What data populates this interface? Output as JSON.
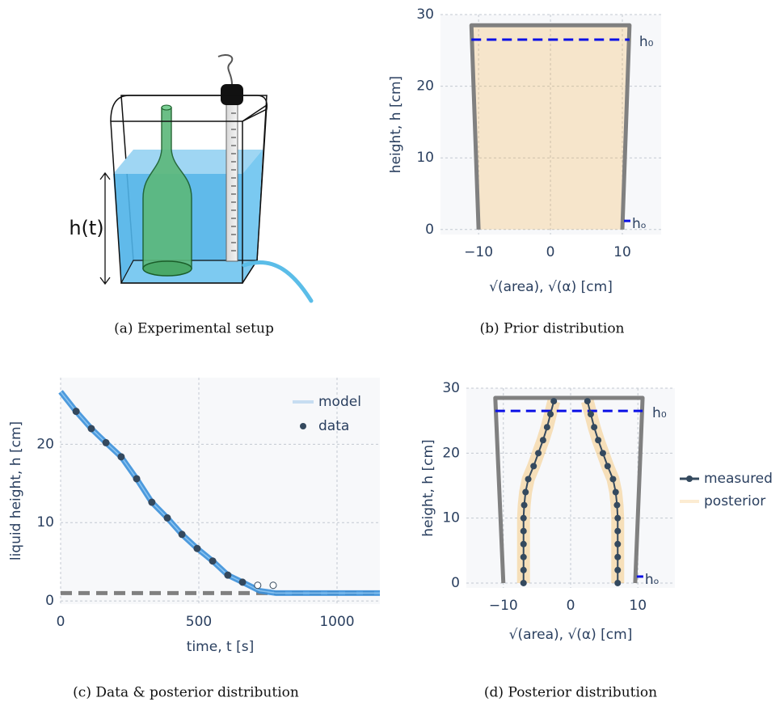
{
  "figure": {
    "label": "h(t)",
    "caption": "(a) Experimental setup"
  },
  "chart_data": [
    {
      "type": "profile",
      "caption": "(b) Prior distribution",
      "x_label": "√(area), √(α) [cm]",
      "y_label": "height, h [cm]",
      "xlim": [
        -15.3,
        15.4
      ],
      "ylim": [
        -0.7,
        30
      ],
      "xticks": [
        {
          "value": -10,
          "label": "−10"
        },
        0,
        10
      ],
      "yticks": [
        0,
        10,
        20,
        30
      ],
      "grid": true,
      "container": {
        "x": [
          -10,
          -11,
          11,
          10
        ],
        "y": [
          0,
          28.5,
          28.5,
          0
        ],
        "color": "#808080"
      },
      "h0": {
        "label": "h₀",
        "value": 26.5,
        "color": "#0a10e6"
      },
      "ho": {
        "label": "hₒ",
        "value": 1.2,
        "color": "#0a10e6"
      },
      "band_color": "#f5a623"
    },
    {
      "type": "line",
      "caption": "(c) Data & posterior distribution",
      "x_label": "time, t [s]",
      "y_label": "liquid height, h [cm]",
      "xlim": [
        0,
        1155
      ],
      "ylim": [
        -0.4,
        28.5
      ],
      "xticks": [
        0,
        500,
        1000
      ],
      "yticks": [
        0,
        10,
        20
      ],
      "grid": true,
      "hline": {
        "value": 1,
        "color": "#808080"
      },
      "series": [
        {
          "name": "model",
          "color": "#3a8fd9",
          "x": [
            0,
            56,
            111,
            164,
            219,
            275,
            330,
            386,
            439,
            494,
            550,
            605,
            658,
            720,
            780,
            1155
          ],
          "values": [
            26.7,
            24.2,
            22.0,
            20.2,
            18.4,
            15.6,
            12.6,
            10.6,
            8.5,
            6.7,
            5.1,
            3.3,
            2.4,
            1.3,
            1.0,
            1.0
          ]
        },
        {
          "name": "data",
          "color": "#34495e",
          "x": [
            56,
            111,
            164,
            219,
            275,
            330,
            386,
            439,
            494,
            550,
            605,
            658,
            713,
            769
          ],
          "values": [
            24.2,
            22.0,
            20.2,
            18.4,
            15.6,
            12.6,
            10.6,
            8.5,
            6.7,
            5.1,
            3.3,
            2.4,
            2.0,
            2.0
          ],
          "hollow": [
            false,
            false,
            false,
            false,
            false,
            false,
            false,
            false,
            false,
            false,
            false,
            false,
            true,
            true
          ]
        }
      ]
    },
    {
      "type": "profile",
      "caption": "(d) Posterior distribution",
      "x_label": "√(area), √(α) [cm]",
      "y_label": "height, h [cm]",
      "xlim": [
        -15.5,
        15.5
      ],
      "ylim": [
        -0.75,
        30
      ],
      "xticks": [
        {
          "value": -10,
          "label": "−10"
        },
        0,
        10
      ],
      "yticks": [
        0,
        10,
        20,
        30
      ],
      "grid": true,
      "container": {
        "x": [
          -10,
          -11.2,
          10.7,
          9.6
        ],
        "y": [
          0,
          28.5,
          28.5,
          0
        ],
        "color": "#808080"
      },
      "h0": {
        "label": "h₀",
        "value": 26.5,
        "color": "#0a10e6"
      },
      "ho": {
        "label": "hₒ",
        "value": 1,
        "color": "#0a10e6"
      },
      "series": [
        {
          "name": "measured",
          "color": "#34495e",
          "y": [
            0,
            2,
            4,
            6,
            8,
            10,
            12,
            14,
            16,
            18,
            20,
            22,
            24,
            26,
            28
          ],
          "x_left": [
            -7,
            -7,
            -7,
            -7,
            -7,
            -7,
            -6.9,
            -6.7,
            -6.3,
            -5.5,
            -4.8,
            -4.1,
            -3.5,
            -3.0,
            -2.5
          ],
          "x_right": [
            7,
            7,
            7,
            7,
            7,
            7,
            6.9,
            6.7,
            6.3,
            5.5,
            4.8,
            4.1,
            3.5,
            3.0,
            2.5
          ]
        },
        {
          "name": "posterior",
          "color": "#f5a623"
        }
      ]
    }
  ]
}
